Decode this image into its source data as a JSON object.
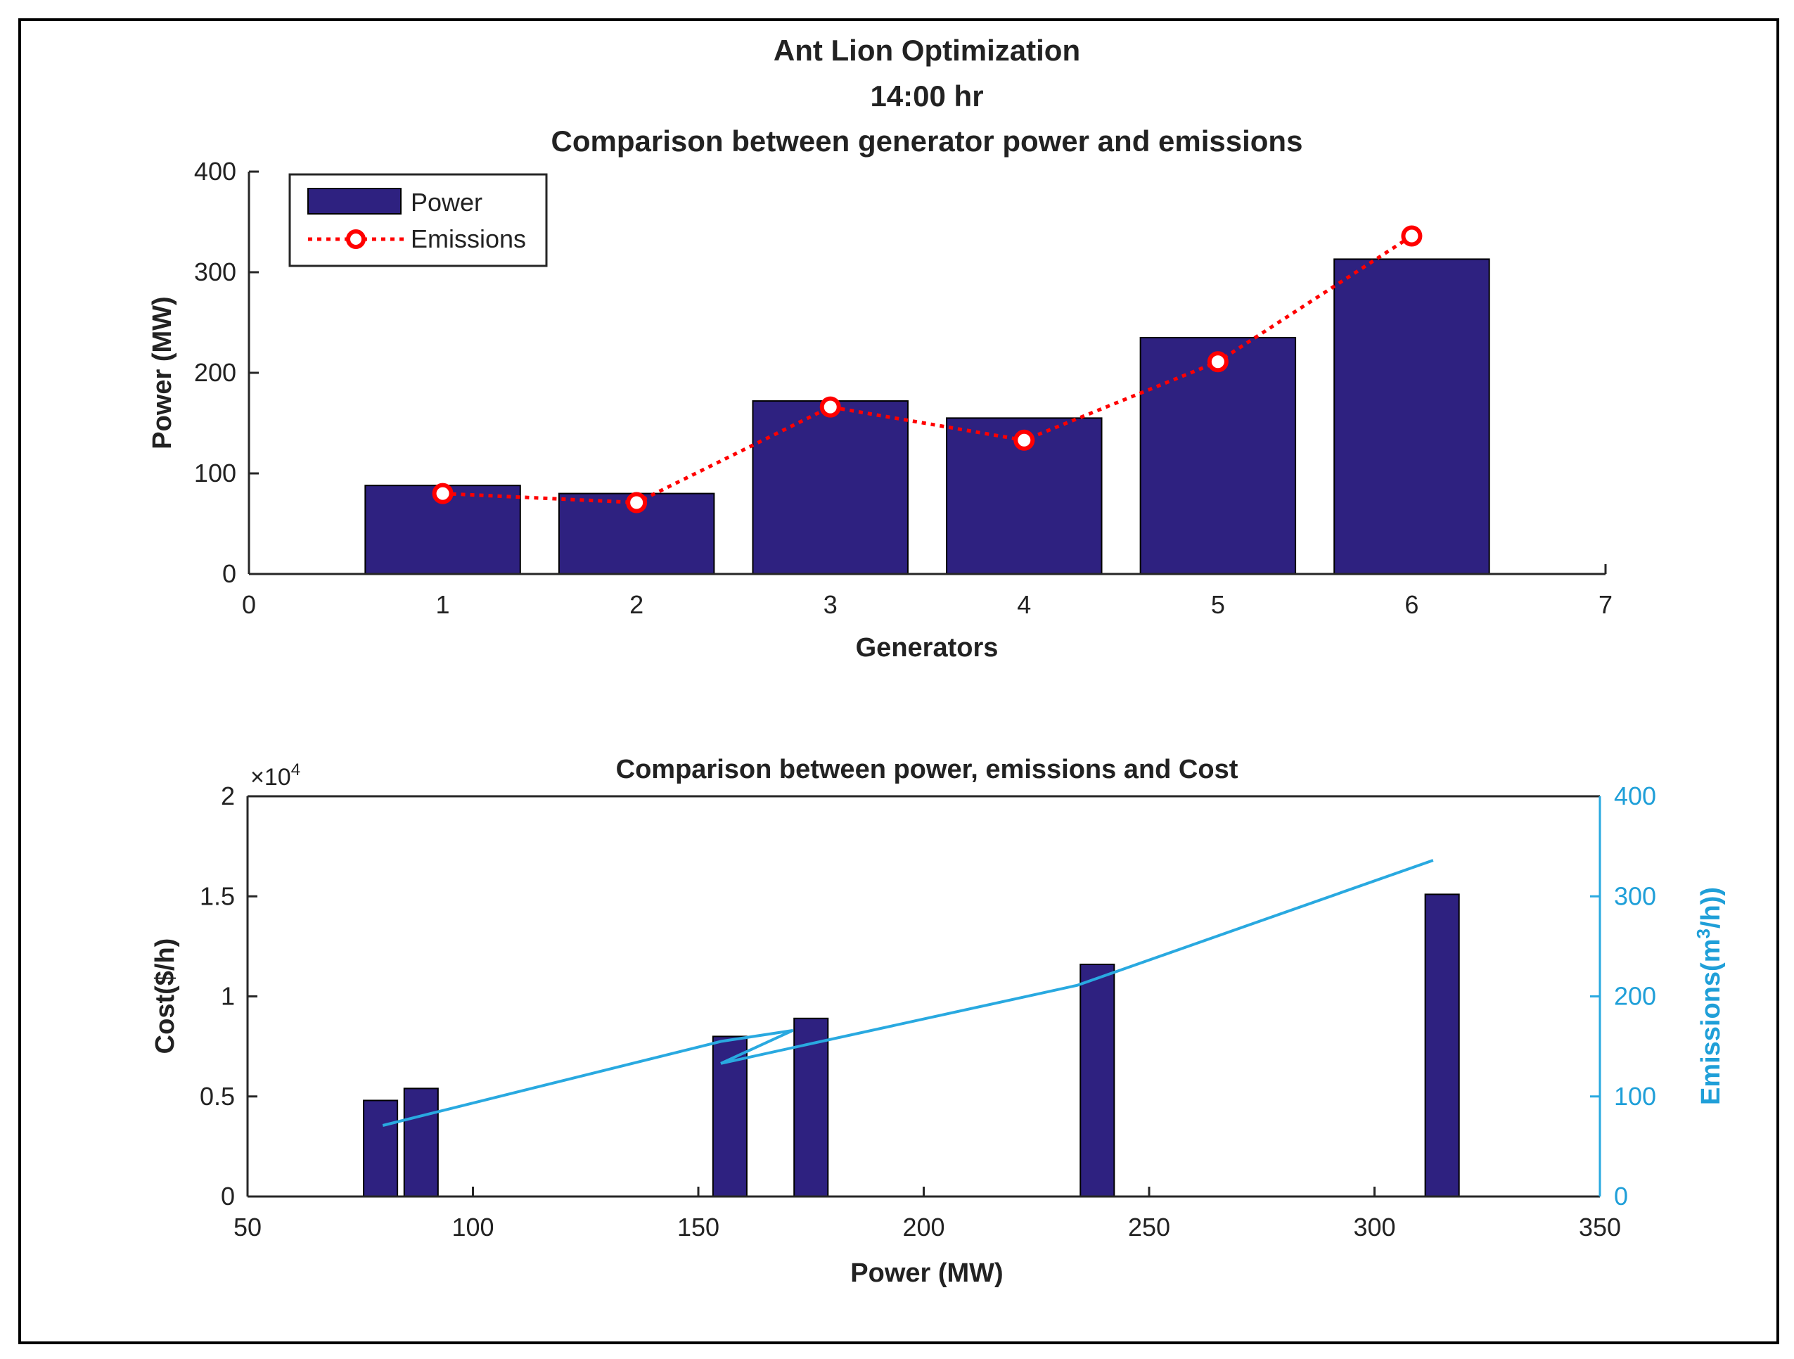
{
  "chart_data": [
    {
      "type": "bar",
      "title_lines": [
        "Ant Lion Optimization",
        "14:00 hr",
        "Comparison between generator power and emissions"
      ],
      "xlabel": "Generators",
      "ylabel": "Power (MW)",
      "xlim": [
        0,
        7
      ],
      "ylim": [
        0,
        400
      ],
      "xticks": [
        0,
        1,
        2,
        3,
        4,
        5,
        6,
        7
      ],
      "yticks": [
        0,
        100,
        200,
        300,
        400
      ],
      "categories": [
        1,
        2,
        3,
        4,
        5,
        6
      ],
      "series": [
        {
          "name": "Power",
          "kind": "bar",
          "color": "#2e2180",
          "values": [
            88,
            80,
            172,
            155,
            235,
            313
          ]
        },
        {
          "name": "Emissions",
          "kind": "line",
          "style": "dotted-circle",
          "color": "#ff0000",
          "values": [
            80,
            71,
            166,
            133,
            211,
            336
          ]
        }
      ],
      "legend": {
        "position": "top-left",
        "entries": [
          "Power",
          "Emissions"
        ]
      }
    },
    {
      "type": "bar",
      "title": "Comparison between power, emissions and Cost",
      "xlabel": "Power (MW)",
      "ylabel_left": "Cost($/h)",
      "ylabel_right_main": "Emissions(m",
      "ylabel_right_sup": "3",
      "ylabel_right_tail": "/h))",
      "exponent_base": "×10",
      "exponent_power": "4",
      "xlim": [
        50,
        350
      ],
      "ylim_left": [
        0,
        2
      ],
      "ylim_right": [
        0,
        400
      ],
      "xticks": [
        50,
        100,
        150,
        200,
        250,
        300,
        350
      ],
      "yticks_left": [
        "0",
        "0.5",
        "1",
        "1.5",
        "2"
      ],
      "yticks_left_values": [
        0,
        0.5,
        1,
        1.5,
        2
      ],
      "yticks_right": [
        0,
        100,
        200,
        300,
        400
      ],
      "cost_bars": {
        "color": "#2e2180",
        "bar_width_mw": 7.5,
        "power": [
          79.5,
          88.5,
          157,
          175,
          238.5,
          315
        ],
        "cost_x1e4": [
          0.48,
          0.54,
          0.8,
          0.89,
          1.16,
          1.51
        ]
      },
      "emissions_line": {
        "color": "#29a9e0",
        "power": [
          80,
          88,
          155,
          171,
          155,
          234,
          313
        ],
        "emissions": [
          71,
          80,
          155,
          166,
          133,
          211,
          336
        ]
      }
    }
  ]
}
